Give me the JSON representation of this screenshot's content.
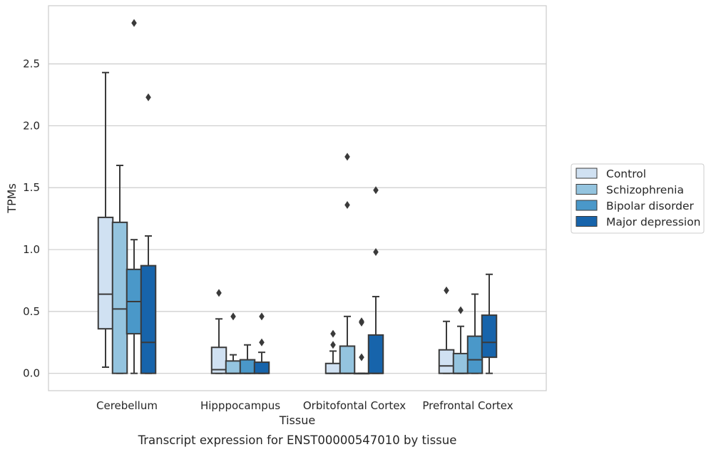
{
  "caption": "Transcript expression for ENST00000547010 by tissue",
  "colors": {
    "Control": "#d0e1f2",
    "Schizophrenia": "#94c4df",
    "Bipolar disorder": "#4a98c9",
    "Major depression": "#1764ab",
    "line": "#3a3a3a",
    "grid": "#cccccc",
    "frame": "#cccccc"
  },
  "chart_data": {
    "type": "box",
    "xlabel": "Tissue",
    "ylabel": "TPMs",
    "ylim": [
      -0.14,
      2.97
    ],
    "yticks": [
      0.0,
      0.5,
      1.0,
      1.5,
      2.0,
      2.5
    ],
    "ytick_labels": [
      "0.0",
      "0.5",
      "1.0",
      "1.5",
      "2.0",
      "2.5"
    ],
    "grid": true,
    "legend_position": "right, outside plot",
    "categories": [
      "Cerebellum",
      "Hipppocampus",
      "Orbitofontal Cortex",
      "Prefrontal Cortex"
    ],
    "series": [
      {
        "name": "Control",
        "boxes": [
          {
            "whisker_low": 0.05,
            "q1": 0.36,
            "median": 0.64,
            "q3": 1.26,
            "whisker_high": 2.43,
            "outliers": []
          },
          {
            "whisker_low": 0.0,
            "q1": 0.0,
            "median": 0.03,
            "q3": 0.21,
            "whisker_high": 0.44,
            "outliers": [
              0.65
            ]
          },
          {
            "whisker_low": 0.0,
            "q1": 0.0,
            "median": 0.0,
            "q3": 0.08,
            "whisker_high": 0.18,
            "outliers": [
              0.23,
              0.32
            ]
          },
          {
            "whisker_low": 0.0,
            "q1": 0.0,
            "median": 0.06,
            "q3": 0.19,
            "whisker_high": 0.42,
            "outliers": [
              0.67
            ]
          }
        ]
      },
      {
        "name": "Schizophrenia",
        "boxes": [
          {
            "whisker_low": 0.0,
            "q1": 0.0,
            "median": 0.52,
            "q3": 1.22,
            "whisker_high": 1.68,
            "outliers": []
          },
          {
            "whisker_low": 0.0,
            "q1": 0.0,
            "median": 0.0,
            "q3": 0.1,
            "whisker_high": 0.15,
            "outliers": [
              0.46
            ]
          },
          {
            "whisker_low": 0.0,
            "q1": 0.0,
            "median": 0.0,
            "q3": 0.22,
            "whisker_high": 0.46,
            "outliers": [
              1.36,
              1.75
            ]
          },
          {
            "whisker_low": 0.0,
            "q1": 0.0,
            "median": 0.0,
            "q3": 0.16,
            "whisker_high": 0.38,
            "outliers": [
              0.51
            ]
          }
        ]
      },
      {
        "name": "Bipolar disorder",
        "boxes": [
          {
            "whisker_low": 0.0,
            "q1": 0.32,
            "median": 0.58,
            "q3": 0.84,
            "whisker_high": 1.08,
            "outliers": [
              2.83
            ]
          },
          {
            "whisker_low": 0.0,
            "q1": 0.0,
            "median": 0.0,
            "q3": 0.11,
            "whisker_high": 0.23,
            "outliers": []
          },
          {
            "whisker_low": 0.0,
            "q1": 0.0,
            "median": 0.0,
            "q3": 0.0,
            "whisker_high": 0.0,
            "outliers": [
              0.13,
              0.41,
              0.42
            ]
          },
          {
            "whisker_low": 0.0,
            "q1": 0.0,
            "median": 0.11,
            "q3": 0.3,
            "whisker_high": 0.64,
            "outliers": []
          }
        ]
      },
      {
        "name": "Major depression",
        "boxes": [
          {
            "whisker_low": 0.0,
            "q1": 0.0,
            "median": 0.25,
            "q3": 0.87,
            "whisker_high": 1.11,
            "outliers": [
              2.23
            ]
          },
          {
            "whisker_low": 0.0,
            "q1": 0.0,
            "median": 0.0,
            "q3": 0.09,
            "whisker_high": 0.17,
            "outliers": [
              0.25,
              0.46
            ]
          },
          {
            "whisker_low": 0.0,
            "q1": 0.0,
            "median": 0.0,
            "q3": 0.31,
            "whisker_high": 0.62,
            "outliers": [
              0.98,
              1.48
            ]
          },
          {
            "whisker_low": 0.0,
            "q1": 0.13,
            "median": 0.25,
            "q3": 0.47,
            "whisker_high": 0.8,
            "outliers": []
          }
        ]
      }
    ]
  }
}
